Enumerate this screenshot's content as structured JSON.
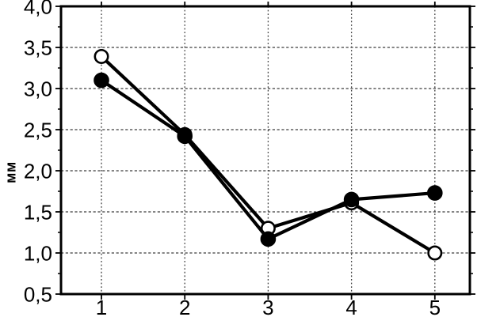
{
  "figure": {
    "background_color": "#ffffff"
  },
  "chart_data": {
    "type": "line",
    "title": "",
    "xlabel": "",
    "ylabel": "мм",
    "x": [
      1,
      2,
      3,
      4,
      5
    ],
    "x_tick_labels": [
      "1",
      "2",
      "3",
      "4",
      "5"
    ],
    "xlim": [
      0.515,
      5.42
    ],
    "ylim": [
      0.5,
      4.0
    ],
    "y_ticks": [
      0.5,
      1.0,
      1.5,
      2.0,
      2.5,
      3.0,
      3.5,
      4.0
    ],
    "y_tick_labels": [
      "0,5",
      "1,0",
      "1,5",
      "2,0",
      "2,5",
      "3,0",
      "3,5",
      "4,0"
    ],
    "y_minor_ticks": [
      0.75,
      1.25,
      1.75,
      2.25,
      2.75,
      3.25,
      3.75
    ],
    "y_gridlines": [
      1.0,
      1.5,
      2.0,
      2.5,
      3.0,
      3.5
    ],
    "x_gridlines": [
      1,
      2,
      3,
      4,
      5
    ],
    "grid": "dashed",
    "legend": "none",
    "series": [
      {
        "name": "open-circle-series",
        "marker": "open",
        "values": [
          3.39,
          2.44,
          1.3,
          1.61,
          1.0
        ]
      },
      {
        "name": "filled-circle-series",
        "marker": "filled",
        "values": [
          3.1,
          2.42,
          1.17,
          1.65,
          1.73
        ]
      }
    ],
    "colors": {
      "line": "#000000",
      "frame": "#000000",
      "grid": "#3c3c3c",
      "text": "#000000",
      "marker_open_fill": "#ffffff",
      "marker_filled_fill": "#000000",
      "background": "#ffffff"
    }
  }
}
